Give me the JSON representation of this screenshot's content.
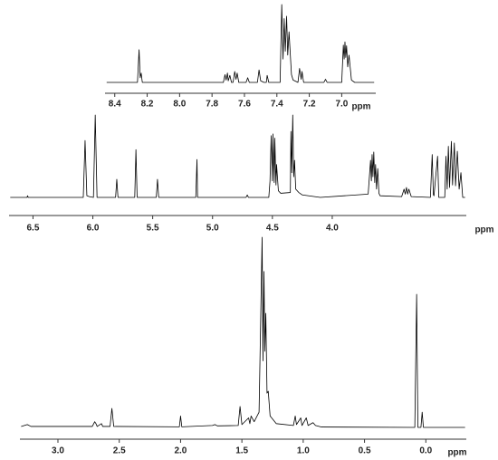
{
  "chart_data": [
    {
      "type": "line",
      "xlabel": "ppm",
      "color": "#000000",
      "xlim": [
        8.46,
        6.79
      ],
      "ylim": [
        0,
        100
      ],
      "xticks": [
        8.4,
        8.2,
        {
          "value": 8,
          "label": "8.0"
        },
        7.8,
        7.6,
        7.4,
        7.2,
        {
          "value": 7,
          "label": "7.0"
        }
      ],
      "x": [
        8.45,
        8.26,
        8.25,
        8.243,
        8.237,
        8.23,
        7.73,
        7.72,
        7.713,
        7.705,
        7.7,
        7.69,
        7.68,
        7.67,
        7.66,
        7.652,
        7.645,
        7.635,
        7.59,
        7.58,
        7.57,
        7.52,
        7.51,
        7.5,
        7.48,
        7.465,
        7.46,
        7.45,
        7.38,
        7.37,
        7.362,
        7.355,
        7.348,
        7.34,
        7.333,
        7.325,
        7.31,
        7.3,
        7.27,
        7.26,
        7.25,
        7.245,
        7.235,
        7.11,
        7.1,
        7.09,
        7.0,
        6.99,
        6.985,
        6.98,
        6.975,
        6.97,
        6.963,
        6.955,
        6.94,
        6.92,
        6.8
      ],
      "values": [
        0,
        0,
        42,
        6,
        12,
        0,
        0,
        10,
        3,
        12,
        2,
        9,
        0,
        0,
        14,
        4,
        12,
        0,
        0,
        6,
        0,
        0,
        16,
        2,
        0,
        0,
        9,
        0,
        0,
        100,
        30,
        82,
        40,
        85,
        35,
        65,
        10,
        3,
        0,
        18,
        4,
        14,
        0,
        0,
        4,
        0,
        0,
        48,
        30,
        52,
        32,
        47,
        20,
        35,
        3,
        0,
        0
      ]
    },
    {
      "type": "line",
      "xlabel": "ppm",
      "color": "#000000",
      "xlim": [
        6.7,
        2.88
      ],
      "ylim": [
        0,
        100
      ],
      "xticks": [
        6.5,
        {
          "value": 6,
          "label": "6.0"
        },
        5.5,
        {
          "value": 5,
          "label": "5.0"
        },
        4.5,
        {
          "value": 4,
          "label": "4.0"
        }
      ],
      "x": [
        6.69,
        6.55,
        6.545,
        6.54,
        6.08,
        6.065,
        6.05,
        6.03,
        5.995,
        5.98,
        5.965,
        5.81,
        5.8,
        5.79,
        5.65,
        5.64,
        5.63,
        5.47,
        5.46,
        5.45,
        5.14,
        5.13,
        5.125,
        4.72,
        4.71,
        4.7,
        4.53,
        4.52,
        4.51,
        4.5,
        4.495,
        4.485,
        4.48,
        4.47,
        4.465,
        4.45,
        4.43,
        4.35,
        4.345,
        4.338,
        4.33,
        4.322,
        4.315,
        4.305,
        4.28,
        4.25,
        4.1,
        3.7,
        3.68,
        3.673,
        3.667,
        3.66,
        3.653,
        3.645,
        3.638,
        3.63,
        3.62,
        3.61,
        3.6,
        3.42,
        3.4,
        3.39,
        3.38,
        3.37,
        3.36,
        3.34,
        3.18,
        3.165,
        3.155,
        3.15,
        3.12,
        3.11,
        3.06,
        3.05,
        3.04,
        3.03,
        3.02,
        3.005,
        2.995,
        2.98,
        2.97,
        2.955,
        2.94,
        2.925,
        2.91,
        2.89
      ],
      "values": [
        0,
        0,
        2,
        0,
        0,
        69,
        2,
        1,
        0,
        100,
        0,
        0,
        22,
        0,
        0,
        58,
        0,
        0,
        22,
        0,
        0,
        46,
        0,
        0,
        3,
        0,
        0,
        20,
        75,
        20,
        77,
        18,
        72,
        15,
        40,
        8,
        5,
        6,
        80,
        30,
        100,
        25,
        45,
        10,
        6,
        3,
        0,
        4,
        45,
        20,
        52,
        25,
        55,
        18,
        40,
        10,
        35,
        5,
        2,
        1,
        10,
        4,
        12,
        4,
        10,
        1,
        0,
        52,
        3,
        2,
        50,
        0,
        0,
        50,
        10,
        62,
        12,
        68,
        15,
        66,
        14,
        56,
        10,
        30,
        0,
        0
      ]
    },
    {
      "type": "line",
      "xlabel": "ppm",
      "color": "#000000",
      "xlim": [
        3.31,
        -0.33
      ],
      "ylim": [
        0,
        100
      ],
      "xticks": [
        {
          "value": 3,
          "label": "3.0"
        },
        2.5,
        {
          "value": 2,
          "label": "2.0"
        },
        1.5,
        {
          "value": 1,
          "label": "1.0"
        },
        0.5,
        {
          "value": 0,
          "label": "0.0"
        }
      ],
      "x": [
        3.3,
        3.25,
        3.22,
        2.72,
        2.7,
        2.69,
        2.68,
        2.645,
        2.635,
        2.575,
        2.56,
        2.545,
        2.01,
        2.0,
        1.99,
        1.74,
        1.72,
        1.7,
        1.53,
        1.515,
        1.5,
        1.445,
        1.435,
        1.425,
        1.4,
        1.36,
        1.335,
        1.328,
        1.32,
        1.313,
        1.305,
        1.295,
        1.285,
        1.27,
        1.22,
        1.08,
        1.065,
        1.055,
        1.02,
        1.01,
        0.975,
        0.96,
        0.92,
        0.9,
        0.85,
        0.09,
        0.075,
        0.065,
        0.04,
        0.03,
        0.02,
        -0.32
      ],
      "values": [
        0.5,
        1.5,
        0.5,
        0.5,
        3,
        2,
        0.5,
        2,
        0.5,
        0.5,
        10,
        0.5,
        0.3,
        6,
        0.3,
        1,
        1.5,
        0.8,
        1,
        11,
        1.5,
        5,
        2,
        6,
        3,
        8,
        100,
        35,
        82,
        40,
        60,
        18,
        19,
        6,
        2,
        1,
        6,
        1.5,
        5,
        1,
        5,
        1,
        2.5,
        1,
        0.2,
        0,
        70,
        0,
        0,
        8,
        0,
        0
      ]
    }
  ]
}
